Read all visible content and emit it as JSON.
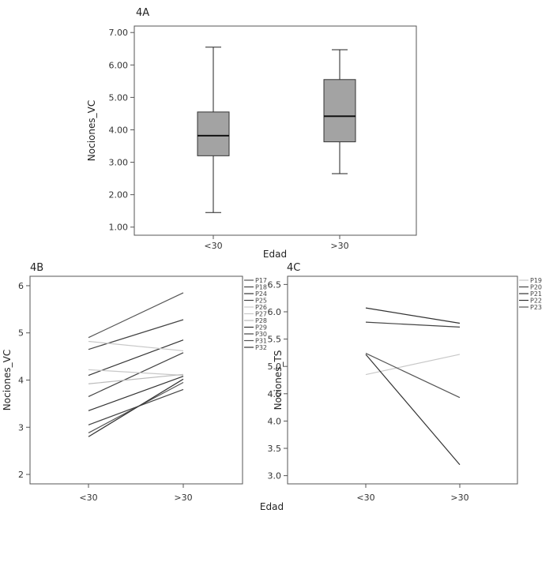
{
  "chart_data": [
    {
      "id": "4A",
      "type": "boxplot",
      "panel_label": "4A",
      "xlabel": "Edad",
      "ylabel": "Nociones_VC",
      "categories": [
        "<30",
        ">30"
      ],
      "yticks": [
        "1.00",
        "2.00",
        "3.00",
        "4.00",
        "5.00",
        "6.00",
        "7.00"
      ],
      "ylim": [
        0.75,
        7.2
      ],
      "boxes": [
        {
          "category": "<30",
          "min": 1.45,
          "q1": 3.2,
          "median": 3.82,
          "q3": 4.55,
          "max": 6.55
        },
        {
          "category": ">30",
          "min": 2.65,
          "q1": 3.63,
          "median": 4.42,
          "q3": 5.55,
          "max": 6.47
        }
      ],
      "box_color": "#a3a3a3"
    },
    {
      "id": "4B",
      "type": "line",
      "panel_label": "4B",
      "xlabel": "Edad",
      "ylabel": "Nociones_VC",
      "x": [
        "<30",
        ">30"
      ],
      "yticks": [
        "2",
        "3",
        "4",
        "5",
        "6"
      ],
      "ylim": [
        1.8,
        6.2
      ],
      "legend": "right",
      "series": [
        {
          "name": "P17",
          "values": [
            4.9,
            5.85
          ],
          "color": "#555555"
        },
        {
          "name": "P18",
          "values": [
            4.65,
            5.28
          ],
          "color": "#444444"
        },
        {
          "name": "P24",
          "values": [
            4.1,
            4.85
          ],
          "color": "#333333"
        },
        {
          "name": "P25",
          "values": [
            3.65,
            4.58
          ],
          "color": "#444444"
        },
        {
          "name": "P26",
          "values": [
            4.82,
            4.62
          ],
          "color": "#c8c8c8"
        },
        {
          "name": "P27",
          "values": [
            4.22,
            4.1
          ],
          "color": "#c8c8c8"
        },
        {
          "name": "P28",
          "values": [
            3.92,
            4.12
          ],
          "color": "#bbbbbb"
        },
        {
          "name": "P29",
          "values": [
            3.35,
            4.08
          ],
          "color": "#333333"
        },
        {
          "name": "P30",
          "values": [
            3.05,
            3.8
          ],
          "color": "#444444"
        },
        {
          "name": "P31",
          "values": [
            2.88,
            3.95
          ],
          "color": "#555555"
        },
        {
          "name": "P32",
          "values": [
            2.8,
            4.02
          ],
          "color": "#333333"
        }
      ]
    },
    {
      "id": "4C",
      "type": "line",
      "panel_label": "4C",
      "xlabel": "",
      "ylabel": "Nociones_TS",
      "x": [
        "<30",
        ">30"
      ],
      "yticks": [
        "3.0",
        "3.5",
        "4.0",
        "4.5",
        "5.0",
        "5.5",
        "6.0",
        "6.5"
      ],
      "ylim": [
        2.85,
        6.65
      ],
      "legend": "right",
      "series": [
        {
          "name": "P19",
          "values": [
            4.85,
            5.22
          ],
          "color": "#c8c8c8"
        },
        {
          "name": "P20",
          "values": [
            5.81,
            5.72
          ],
          "color": "#444444"
        },
        {
          "name": "P21",
          "values": [
            6.07,
            5.79
          ],
          "color": "#333333"
        },
        {
          "name": "P22",
          "values": [
            5.22,
            3.2
          ],
          "color": "#333333"
        },
        {
          "name": "P23",
          "values": [
            5.24,
            4.43
          ],
          "color": "#555555"
        }
      ]
    }
  ]
}
